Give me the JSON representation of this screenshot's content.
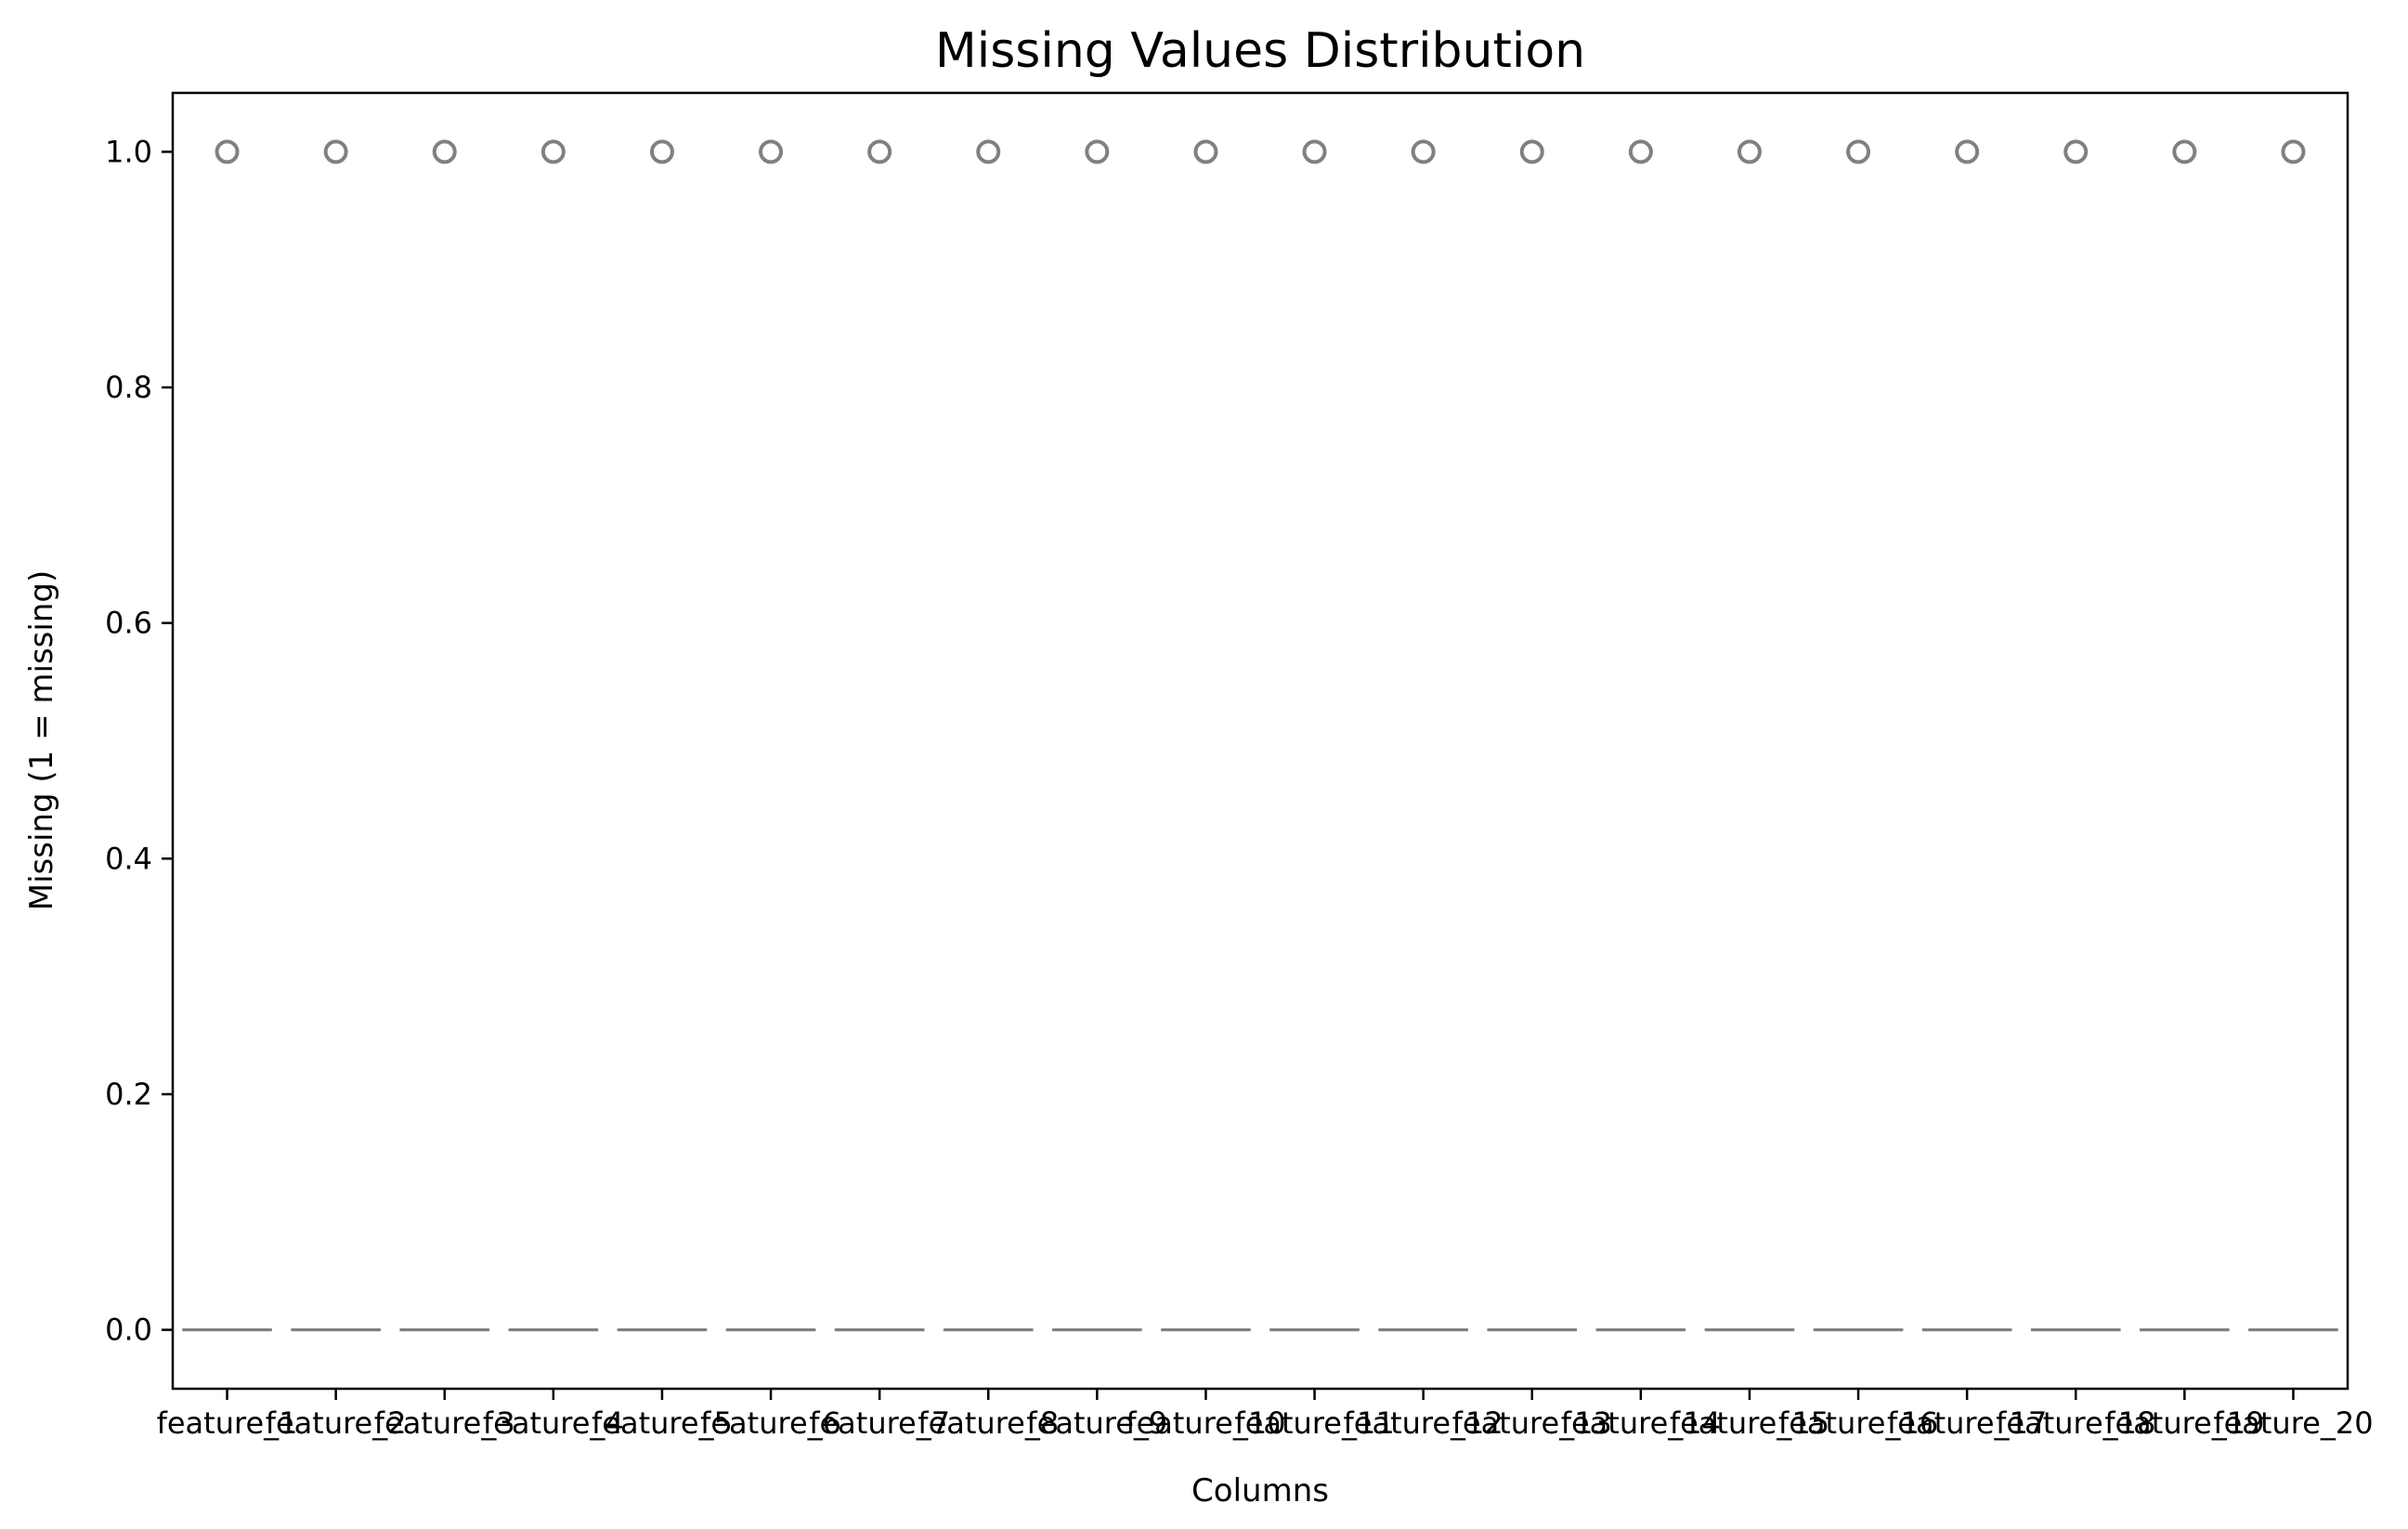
{
  "chart_data": {
    "type": "box",
    "title": "Missing Values Distribution",
    "xlabel": "Columns",
    "ylabel": "Missing (1 = missing)",
    "categories": [
      "feature_1",
      "feature_2",
      "feature_3",
      "feature_4",
      "feature_5",
      "feature_6",
      "feature_7",
      "feature_8",
      "feature_9",
      "feature_10",
      "feature_11",
      "feature_12",
      "feature_13",
      "feature_14",
      "feature_15",
      "feature_16",
      "feature_17",
      "feature_18",
      "feature_19",
      "feature_20"
    ],
    "median": [
      0,
      0,
      0,
      0,
      0,
      0,
      0,
      0,
      0,
      0,
      0,
      0,
      0,
      0,
      0,
      0,
      0,
      0,
      0,
      0
    ],
    "q1": [
      0,
      0,
      0,
      0,
      0,
      0,
      0,
      0,
      0,
      0,
      0,
      0,
      0,
      0,
      0,
      0,
      0,
      0,
      0,
      0
    ],
    "q3": [
      0,
      0,
      0,
      0,
      0,
      0,
      0,
      0,
      0,
      0,
      0,
      0,
      0,
      0,
      0,
      0,
      0,
      0,
      0,
      0
    ],
    "outliers": [
      1,
      1,
      1,
      1,
      1,
      1,
      1,
      1,
      1,
      1,
      1,
      1,
      1,
      1,
      1,
      1,
      1,
      1,
      1,
      1
    ],
    "ylim": [
      -0.05,
      1.05
    ],
    "yticks": [
      0.0,
      0.2,
      0.4,
      0.6,
      0.8,
      1.0
    ],
    "ytick_labels": [
      "0.0",
      "0.2",
      "0.4",
      "0.6",
      "0.8",
      "1.0"
    ],
    "grid": false,
    "legend": "none",
    "colors": {
      "box": "#808080",
      "outlier": "#808080",
      "axes": "#000000"
    }
  }
}
